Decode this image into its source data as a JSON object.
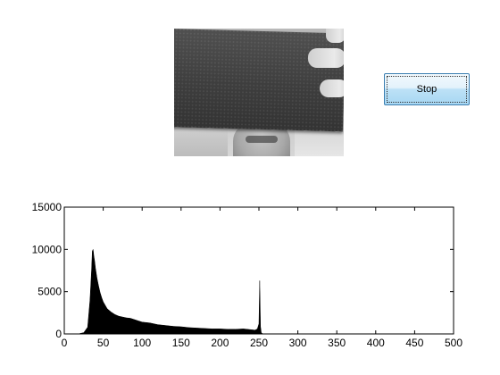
{
  "controls": {
    "stop_label": "Stop"
  },
  "camera_preview": {
    "description_icon": "camera-frame"
  },
  "chart_data": {
    "type": "bar",
    "title": "",
    "xlabel": "",
    "ylabel": "",
    "xlim": [
      0,
      500
    ],
    "ylim": [
      0,
      15000
    ],
    "xticks": [
      0,
      50,
      100,
      150,
      200,
      250,
      300,
      350,
      400,
      450,
      500
    ],
    "yticks": [
      0,
      5000,
      10000,
      15000
    ],
    "grid": false,
    "x": [
      20,
      25,
      30,
      33,
      35,
      36,
      37,
      38,
      39,
      40,
      42,
      44,
      46,
      48,
      50,
      55,
      60,
      65,
      70,
      75,
      80,
      85,
      90,
      95,
      100,
      110,
      120,
      130,
      140,
      150,
      160,
      170,
      180,
      190,
      200,
      210,
      220,
      230,
      240,
      245,
      248,
      250,
      251,
      252,
      253,
      255
    ],
    "values": [
      50,
      150,
      800,
      4000,
      7500,
      9800,
      10000,
      9200,
      8600,
      7800,
      6600,
      5700,
      4900,
      4300,
      3800,
      3000,
      2600,
      2300,
      2100,
      2000,
      1900,
      1850,
      1700,
      1550,
      1400,
      1300,
      1100,
      1000,
      900,
      850,
      750,
      700,
      650,
      600,
      600,
      550,
      550,
      600,
      500,
      450,
      600,
      1200,
      6300,
      900,
      150,
      0
    ],
    "color": "#000000"
  }
}
